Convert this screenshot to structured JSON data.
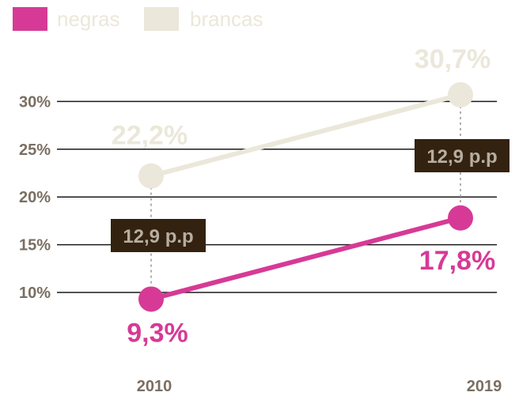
{
  "chart_data": {
    "type": "line",
    "x": [
      "2010",
      "2019"
    ],
    "y_ticks": [
      "10%",
      "15%",
      "20%",
      "25%",
      "30%"
    ],
    "ylim": [
      5,
      33
    ],
    "grid": true,
    "legend_placement": "top-left",
    "series": [
      {
        "name": "negras",
        "color": "#d63a96",
        "values": [
          9.3,
          17.8
        ],
        "labels": [
          "9,3%",
          "17,8%"
        ]
      },
      {
        "name": "brancas",
        "color": "#ebe7da",
        "values": [
          22.2,
          30.7
        ],
        "labels": [
          "22,2%",
          "30,7%"
        ]
      }
    ],
    "annotations": [
      {
        "text": "12,9 p.p",
        "x": "2010"
      },
      {
        "text": "12,9 p.p",
        "x": "2019"
      }
    ]
  },
  "colors": {
    "negras": "#d63a96",
    "brancas": "#ebe7da",
    "grid": "#1a1a1a",
    "tick": "#7a6e62",
    "gap_box": "#33220f",
    "gap_text": "#b7ada1",
    "connector": "#b0b0b0"
  }
}
